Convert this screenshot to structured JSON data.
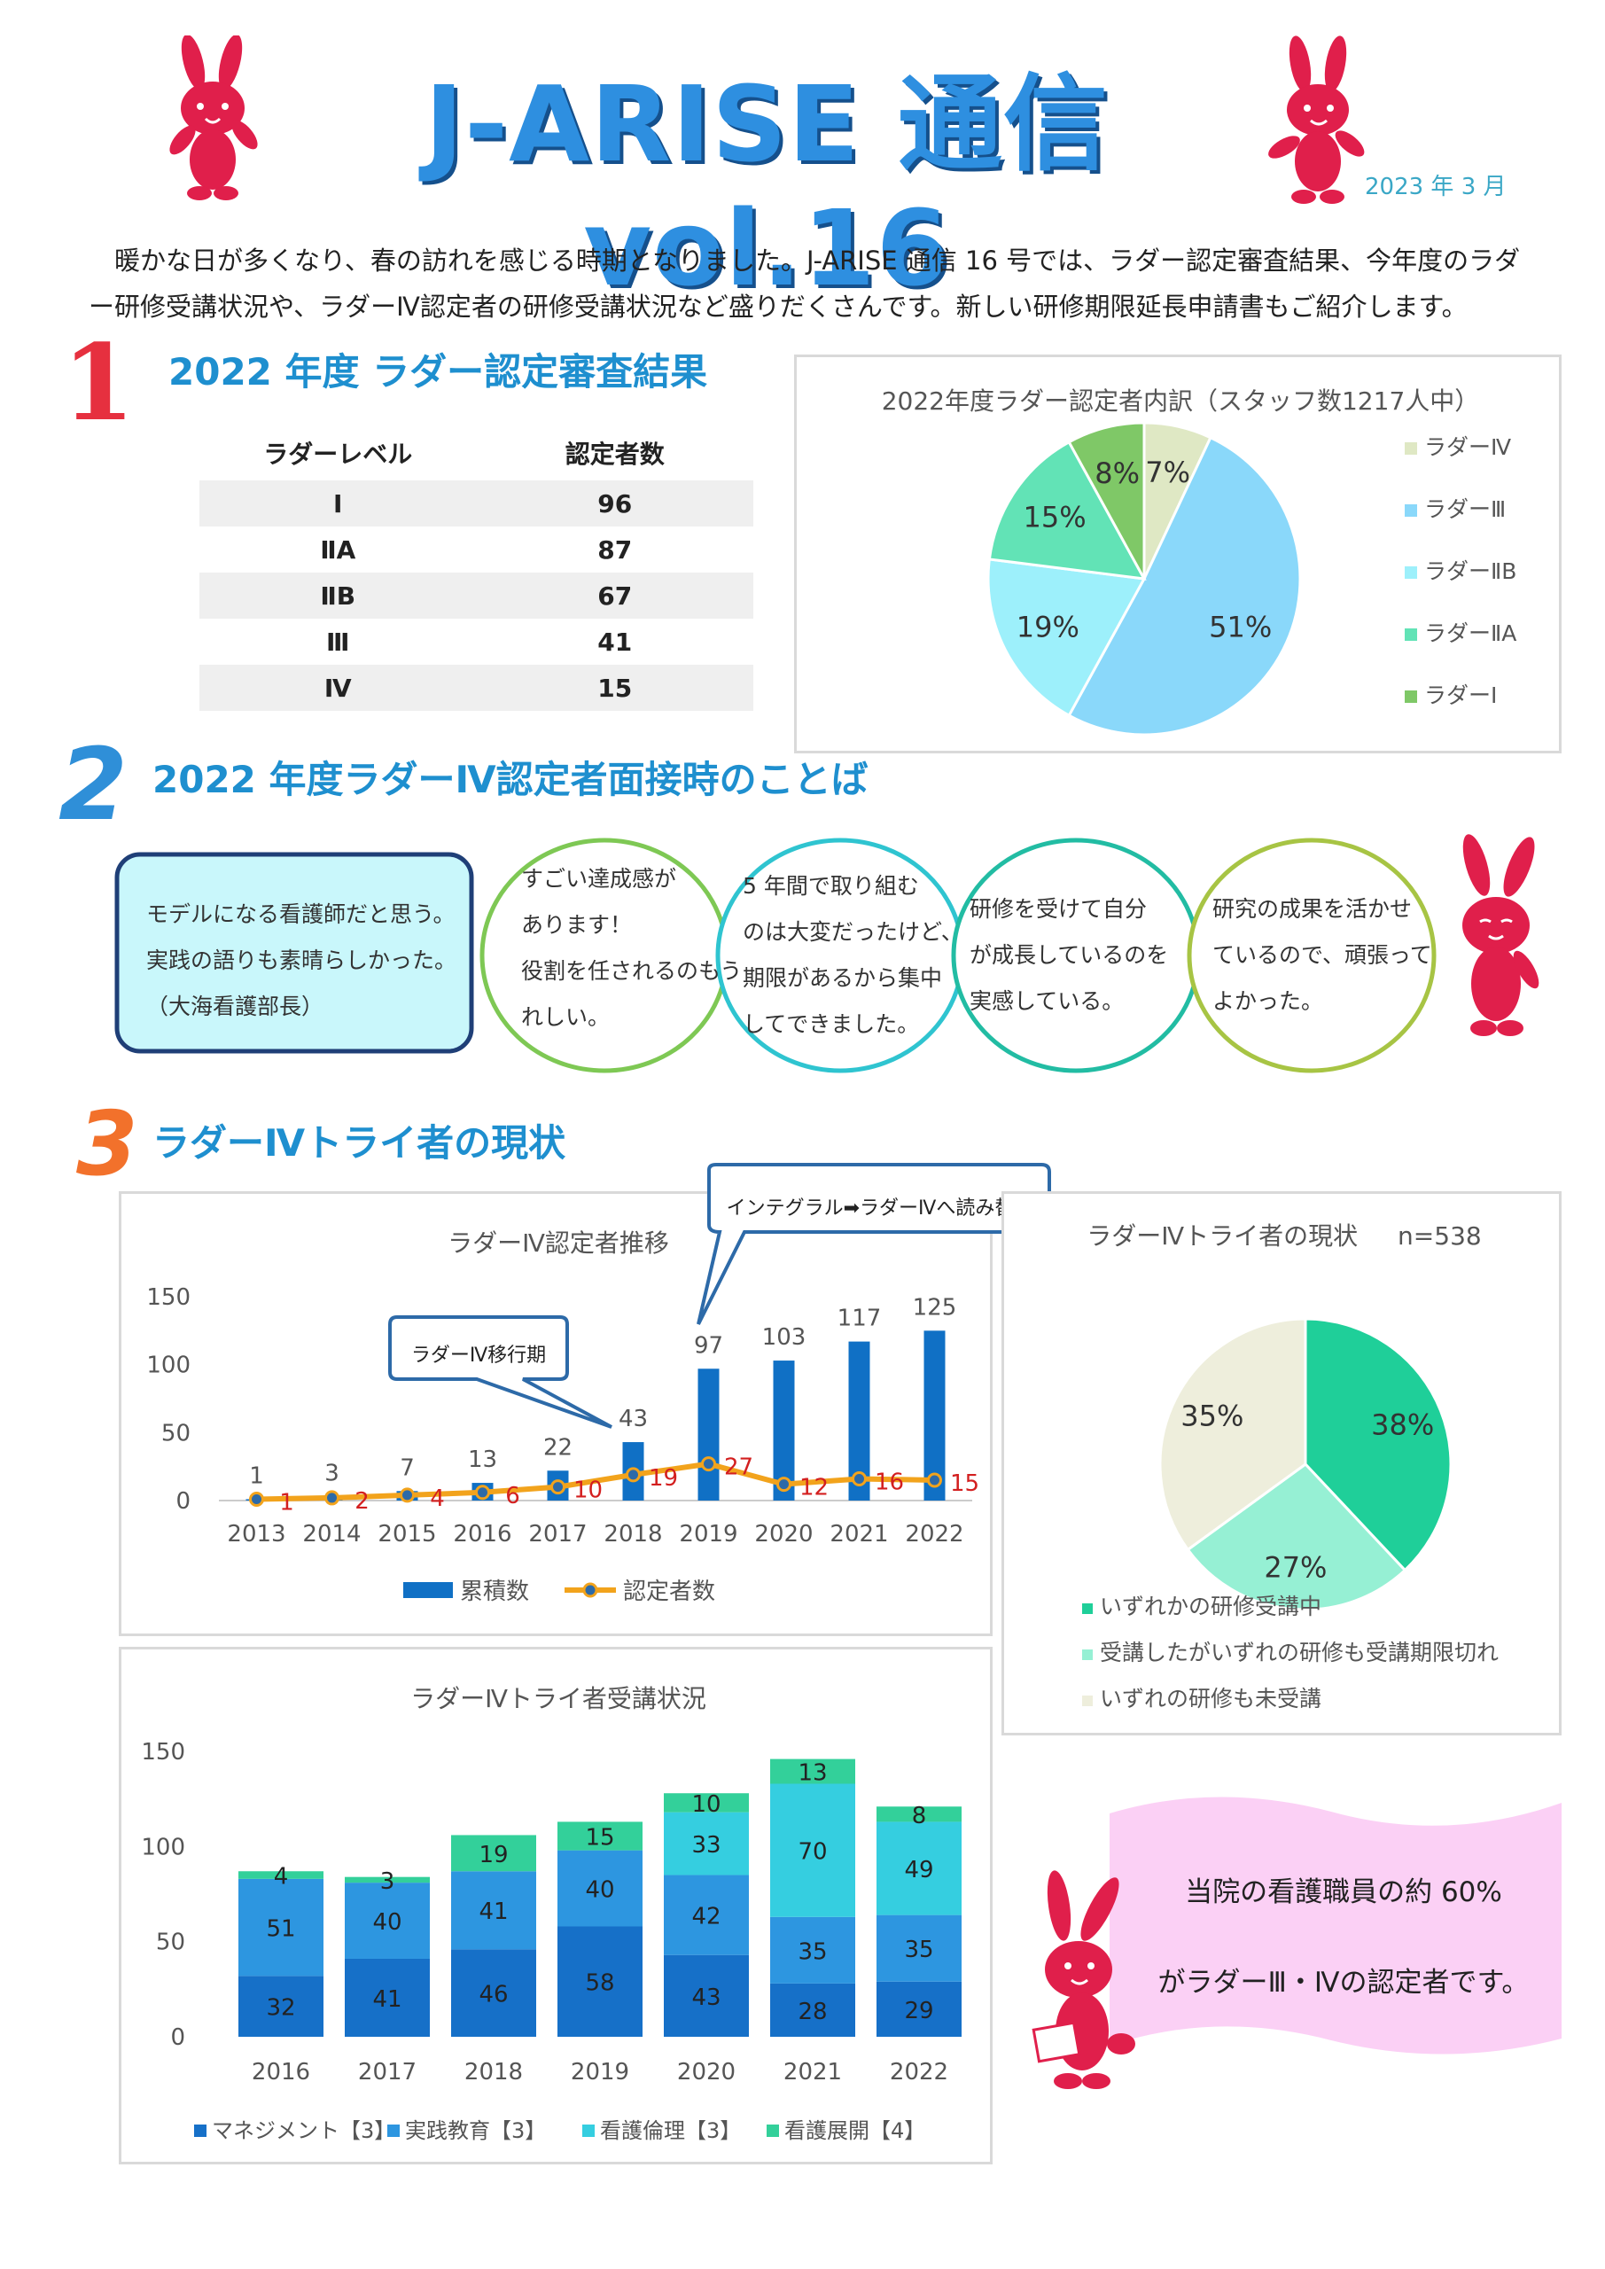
{
  "header": {
    "title": "J-ARISE 通信 vol.16",
    "date": "2023 年 3 月",
    "intro": "暖かな日が多くなり、春の訪れを感じる時期となりました。J-ARISE 通信 16 号では、ラダー認定審査結果、今年度のラダー研修受講状況や、ラダーⅣ認定者の研修受講状況など盛りだくさんです。新しい研修期限延長申請書もご紹介します。"
  },
  "colors": {
    "title_blue": "#2e8fe0",
    "heading_blue": "#1e8fcf",
    "rabbit_red": "#e01f4b",
    "section1_red": "#e6303f",
    "section2_blue": "#2f8fd8",
    "section3_orange": "#f2712b"
  },
  "section1": {
    "number": "1",
    "heading": "2022 年度 ラダー認定審査結果",
    "table": {
      "headers": [
        "ラダーレベル",
        "認定者数"
      ],
      "rows": [
        [
          "Ⅰ",
          "96"
        ],
        [
          "ⅡA",
          "87"
        ],
        [
          "ⅡB",
          "67"
        ],
        [
          "Ⅲ",
          "41"
        ],
        [
          "Ⅳ",
          "15"
        ]
      ]
    }
  },
  "section2": {
    "number": "2",
    "heading": "2022 年度ラダーⅣ認定者面接時のことば",
    "quotes": [
      "モデルになる看護師だと思う。\n実践の語りも素晴らしかった。\n（大海看護部長）",
      "すごい達成感が\nあります！\n役割を任されるのもう\nれしい。",
      "5 年間で取り組む\nのは大変だったけど、\n期限があるから集中\nしてできました。",
      "研修を受けて自分\nが成長しているのを\n実感している。",
      "研究の成果を活かせ\nているので、頑張って\nよかった。"
    ]
  },
  "section3": {
    "number": "3",
    "heading": "ラダーⅣトライ者の現状",
    "callout_transition": "インテグラル➡ラダーⅣへ読み替え",
    "callout_migration": "ラダーⅣ移行期"
  },
  "info_note": {
    "line1": "当院の看護職員の約 60%",
    "line2": "がラダーⅢ・Ⅳの認定者です。"
  },
  "chart_data": [
    {
      "type": "pie",
      "title": "2022年度ラダー認定者内訳（スタッフ数1217人中）",
      "labels": [
        "ラダーⅣ",
        "ラダーⅢ",
        "ラダーⅡB",
        "ラダーⅡA",
        "ラダーⅠ"
      ],
      "values": [
        7,
        51,
        19,
        15,
        8
      ],
      "value_labels": [
        "7%",
        "51%",
        "19%",
        "15%",
        "8%"
      ],
      "colors": [
        "#dfe8c4",
        "#8ad8fa",
        "#9df0fb",
        "#62e3b6",
        "#7fc867"
      ],
      "legend": "right"
    },
    {
      "type": "bar",
      "title": "ラダーⅣ認定者推移",
      "categories": [
        "2013",
        "2014",
        "2015",
        "2016",
        "2017",
        "2018",
        "2019",
        "2020",
        "2021",
        "2022"
      ],
      "series": [
        {
          "name": "累積数",
          "type": "bar",
          "color": "#1070c5",
          "values": [
            1,
            3,
            7,
            13,
            22,
            43,
            97,
            103,
            117,
            125
          ]
        },
        {
          "name": "認定者数",
          "type": "line",
          "color": "#f2a31c",
          "values": [
            1,
            2,
            4,
            6,
            10,
            19,
            27,
            12,
            16,
            15
          ]
        }
      ],
      "yticks": [
        "0",
        "50",
        "100",
        "150"
      ],
      "ylim": [
        0,
        150
      ],
      "legend": "bottom"
    },
    {
      "type": "pie",
      "title": "ラダーⅣトライ者の現状",
      "n_label": "n=538",
      "labels": [
        "いずれかの研修受講中",
        "受講したがいずれの研修も受講期限切れ",
        "いずれの研修も未受講"
      ],
      "values": [
        38,
        27,
        35
      ],
      "value_labels": [
        "38%",
        "27%",
        "35%"
      ],
      "colors": [
        "#1fcf99",
        "#96f0d4",
        "#eeeedc"
      ],
      "legend": "bottom"
    },
    {
      "type": "bar",
      "stacked": true,
      "title": "ラダーⅣトライ者受講状況",
      "categories": [
        "2016",
        "2017",
        "2018",
        "2019",
        "2020",
        "2021",
        "2022"
      ],
      "series": [
        {
          "name": "マネジメント【3】",
          "color": "#1670c8",
          "values": [
            32,
            41,
            46,
            58,
            43,
            28,
            29
          ]
        },
        {
          "name": "実践教育【3】",
          "color": "#2d96e0",
          "values": [
            51,
            40,
            41,
            40,
            42,
            35,
            35
          ]
        },
        {
          "name": "看護倫理【3】",
          "color": "#35cee0",
          "values": [
            0,
            0,
            0,
            0,
            33,
            70,
            49
          ]
        },
        {
          "name": "看護展開【4】",
          "color": "#33d09a",
          "values": [
            4,
            3,
            19,
            15,
            10,
            13,
            8
          ]
        }
      ],
      "yticks": [
        "0",
        "50",
        "100",
        "150"
      ],
      "ylim": [
        0,
        150
      ],
      "legend": "bottom"
    }
  ]
}
